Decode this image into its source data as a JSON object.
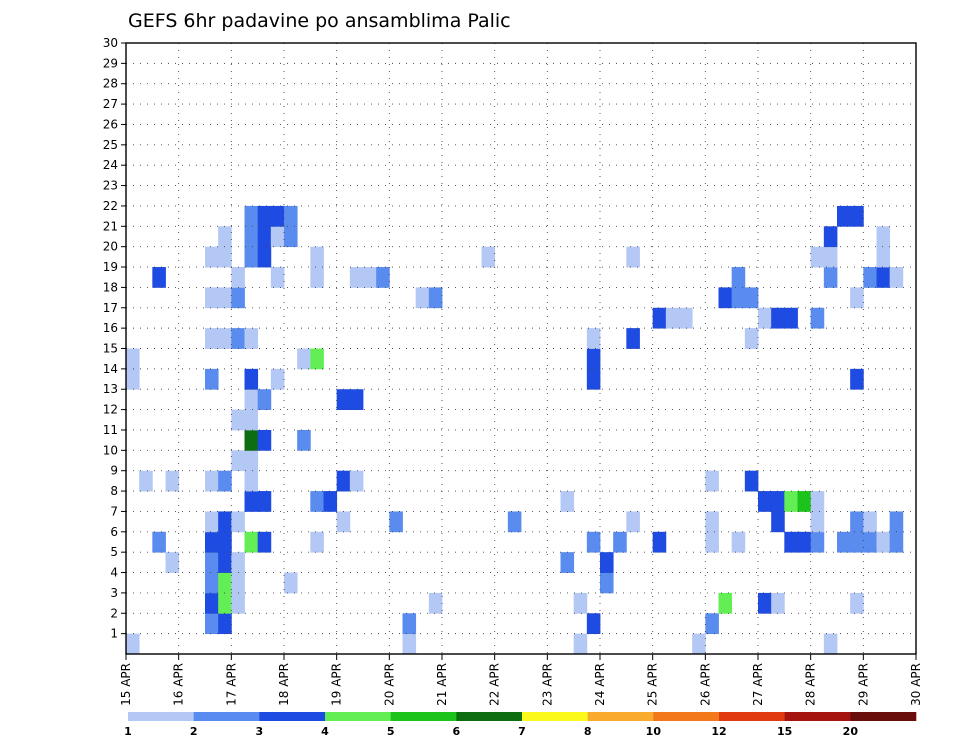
{
  "chart_data": {
    "type": "heatmap",
    "title": "GEFS 6hr padavine po ansamblima Palic",
    "xlabel": "",
    "ylabel": "",
    "x_tick_labels": [
      "15 APR",
      "16 APR",
      "17 APR",
      "18 APR",
      "19 APR",
      "20 APR",
      "21 APR",
      "22 APR",
      "23 APR",
      "24 APR",
      "25 APR",
      "26 APR",
      "27 APR",
      "28 APR",
      "29 APR",
      "30 APR"
    ],
    "x_range": [
      "15 APR 00Z",
      "30 APR 00Z"
    ],
    "x_step": "6hr",
    "x_slots": 60,
    "y_tick_labels": [
      "1",
      "2",
      "3",
      "4",
      "5",
      "6",
      "7",
      "8",
      "9",
      "10",
      "11",
      "12",
      "13",
      "14",
      "15",
      "16",
      "17",
      "18",
      "19",
      "20",
      "21",
      "22",
      "23",
      "24",
      "25",
      "26",
      "27",
      "28",
      "29",
      "30"
    ],
    "ylim": [
      0,
      30
    ],
    "grid": "dotted",
    "colorbar": {
      "placement": "bottom",
      "labels": [
        "1",
        "2",
        "3",
        "4",
        "5",
        "6",
        "7",
        "8",
        "10",
        "12",
        "15",
        "20"
      ],
      "colors": [
        "#b4c8f5",
        "#5a8cf0",
        "#1e4be1",
        "#64ee55",
        "#1cc31a",
        "#0c6e11",
        "#fbf81c",
        "#f8ab2c",
        "#f2781a",
        "#e23a10",
        "#a6140f",
        "#6a0e0c"
      ]
    },
    "cells": [
      [
        0,
        0,
        1
      ],
      [
        21,
        0,
        1
      ],
      [
        34,
        0,
        1
      ],
      [
        43,
        0,
        1
      ],
      [
        53,
        0,
        1
      ],
      [
        6,
        1,
        2
      ],
      [
        7,
        1,
        3
      ],
      [
        21,
        1,
        2
      ],
      [
        35,
        1,
        3
      ],
      [
        44,
        1,
        2
      ],
      [
        6,
        2,
        3
      ],
      [
        7,
        2,
        4
      ],
      [
        8,
        2,
        1
      ],
      [
        23,
        2,
        1
      ],
      [
        34,
        2,
        1
      ],
      [
        45,
        2,
        4
      ],
      [
        48,
        2,
        3
      ],
      [
        49,
        2,
        1
      ],
      [
        55,
        2,
        1
      ],
      [
        6,
        3,
        2
      ],
      [
        7,
        3,
        4
      ],
      [
        8,
        3,
        1
      ],
      [
        12,
        3,
        1
      ],
      [
        36,
        3,
        2
      ],
      [
        3,
        4,
        1
      ],
      [
        6,
        4,
        2
      ],
      [
        7,
        4,
        3
      ],
      [
        8,
        4,
        1
      ],
      [
        33,
        4,
        2
      ],
      [
        36,
        4,
        3
      ],
      [
        2,
        5,
        2
      ],
      [
        6,
        5,
        3
      ],
      [
        7,
        5,
        3
      ],
      [
        9,
        5,
        4
      ],
      [
        10,
        5,
        3
      ],
      [
        14,
        5,
        1
      ],
      [
        35,
        5,
        2
      ],
      [
        37,
        5,
        2
      ],
      [
        40,
        5,
        3
      ],
      [
        44,
        5,
        1
      ],
      [
        46,
        5,
        1
      ],
      [
        50,
        5,
        3
      ],
      [
        51,
        5,
        3
      ],
      [
        52,
        5,
        2
      ],
      [
        54,
        5,
        2
      ],
      [
        55,
        5,
        2
      ],
      [
        56,
        5,
        2
      ],
      [
        57,
        5,
        1
      ],
      [
        58,
        5,
        2
      ],
      [
        6,
        6,
        1
      ],
      [
        7,
        6,
        3
      ],
      [
        8,
        6,
        1
      ],
      [
        16,
        6,
        1
      ],
      [
        20,
        6,
        2
      ],
      [
        29,
        6,
        2
      ],
      [
        38,
        6,
        1
      ],
      [
        44,
        6,
        1
      ],
      [
        49,
        6,
        3
      ],
      [
        52,
        6,
        1
      ],
      [
        55,
        6,
        2
      ],
      [
        56,
        6,
        1
      ],
      [
        58,
        6,
        2
      ],
      [
        9,
        7,
        3
      ],
      [
        10,
        7,
        3
      ],
      [
        14,
        7,
        2
      ],
      [
        15,
        7,
        3
      ],
      [
        33,
        7,
        1
      ],
      [
        48,
        7,
        3
      ],
      [
        49,
        7,
        3
      ],
      [
        50,
        7,
        4
      ],
      [
        51,
        7,
        5
      ],
      [
        52,
        7,
        1
      ],
      [
        1,
        8,
        1
      ],
      [
        3,
        8,
        1
      ],
      [
        6,
        8,
        1
      ],
      [
        7,
        8,
        2
      ],
      [
        9,
        8,
        1
      ],
      [
        16,
        8,
        3
      ],
      [
        17,
        8,
        1
      ],
      [
        44,
        8,
        1
      ],
      [
        47,
        8,
        3
      ],
      [
        8,
        9,
        1
      ],
      [
        9,
        9,
        1
      ],
      [
        9,
        9,
        1
      ],
      [
        9,
        10,
        6
      ],
      [
        10,
        10,
        3
      ],
      [
        13,
        10,
        2
      ],
      [
        8,
        11,
        1
      ],
      [
        9,
        11,
        1
      ],
      [
        9,
        12,
        1
      ],
      [
        10,
        12,
        2
      ],
      [
        16,
        12,
        3
      ],
      [
        17,
        12,
        3
      ],
      [
        0,
        13,
        1
      ],
      [
        6,
        13,
        2
      ],
      [
        9,
        13,
        3
      ],
      [
        11,
        13,
        1
      ],
      [
        35,
        13,
        3
      ],
      [
        55,
        13,
        3
      ],
      [
        0,
        14,
        1
      ],
      [
        13,
        14,
        1
      ],
      [
        14,
        14,
        4
      ],
      [
        35,
        14,
        3
      ],
      [
        6,
        15,
        1
      ],
      [
        7,
        15,
        1
      ],
      [
        8,
        15,
        2
      ],
      [
        9,
        15,
        1
      ],
      [
        35,
        15,
        1
      ],
      [
        38,
        15,
        3
      ],
      [
        47,
        15,
        1
      ],
      [
        40,
        16,
        3
      ],
      [
        41,
        16,
        1
      ],
      [
        42,
        16,
        1
      ],
      [
        48,
        16,
        1
      ],
      [
        49,
        16,
        3
      ],
      [
        50,
        16,
        3
      ],
      [
        52,
        16,
        2
      ],
      [
        6,
        17,
        1
      ],
      [
        7,
        17,
        1
      ],
      [
        8,
        17,
        2
      ],
      [
        22,
        17,
        1
      ],
      [
        23,
        17,
        2
      ],
      [
        45,
        17,
        3
      ],
      [
        46,
        17,
        2
      ],
      [
        47,
        17,
        2
      ],
      [
        55,
        17,
        1
      ],
      [
        2,
        18,
        3
      ],
      [
        8,
        18,
        1
      ],
      [
        11,
        18,
        1
      ],
      [
        14,
        18,
        1
      ],
      [
        17,
        18,
        1
      ],
      [
        18,
        18,
        1
      ],
      [
        19,
        18,
        2
      ],
      [
        46,
        18,
        2
      ],
      [
        53,
        18,
        2
      ],
      [
        56,
        18,
        2
      ],
      [
        57,
        18,
        3
      ],
      [
        58,
        18,
        1
      ],
      [
        6,
        19,
        1
      ],
      [
        7,
        19,
        1
      ],
      [
        9,
        19,
        2
      ],
      [
        10,
        19,
        3
      ],
      [
        14,
        19,
        1
      ],
      [
        27,
        19,
        1
      ],
      [
        38,
        19,
        1
      ],
      [
        52,
        19,
        1
      ],
      [
        53,
        19,
        1
      ],
      [
        57,
        19,
        1
      ],
      [
        7,
        20,
        1
      ],
      [
        9,
        20,
        2
      ],
      [
        10,
        20,
        3
      ],
      [
        11,
        20,
        1
      ],
      [
        12,
        20,
        2
      ],
      [
        53,
        20,
        3
      ],
      [
        57,
        20,
        1
      ],
      [
        9,
        21,
        2
      ],
      [
        10,
        21,
        3
      ],
      [
        11,
        21,
        3
      ],
      [
        12,
        21,
        2
      ],
      [
        54,
        21,
        3
      ],
      [
        55,
        21,
        3
      ]
    ]
  }
}
